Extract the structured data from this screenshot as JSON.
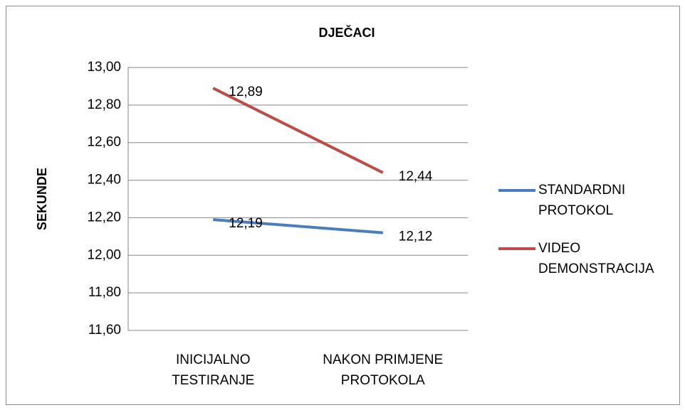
{
  "chart_data": {
    "type": "line",
    "title": "DJEČACI",
    "y_label": "SEKUNDE",
    "categories": [
      "INICIJALNO TESTIRANJE",
      "NAKON PRIMJENE PROTOKOLA"
    ],
    "series": [
      {
        "name": "STANDARDNI PROTOKOL",
        "color": "#4a7ebb",
        "values": [
          12.19,
          12.12
        ],
        "value_labels": [
          "12,19",
          "12,12"
        ]
      },
      {
        "name": "VIDEO DEMONSTRACIJA",
        "color": "#be4b48",
        "values": [
          12.89,
          12.44
        ],
        "value_labels": [
          "12,89",
          "12,44"
        ]
      }
    ],
    "ylim": [
      11.6,
      13.0
    ],
    "yticks": [
      {
        "value": 11.6,
        "label": "11,60"
      },
      {
        "value": 11.8,
        "label": "11,80"
      },
      {
        "value": 12.0,
        "label": "12,00"
      },
      {
        "value": 12.2,
        "label": "12,20"
      },
      {
        "value": 12.4,
        "label": "12,40"
      },
      {
        "value": 12.6,
        "label": "12,60"
      },
      {
        "value": 12.8,
        "label": "12,80"
      },
      {
        "value": 13.0,
        "label": "13,00"
      }
    ],
    "grid": true,
    "legend": "right"
  }
}
